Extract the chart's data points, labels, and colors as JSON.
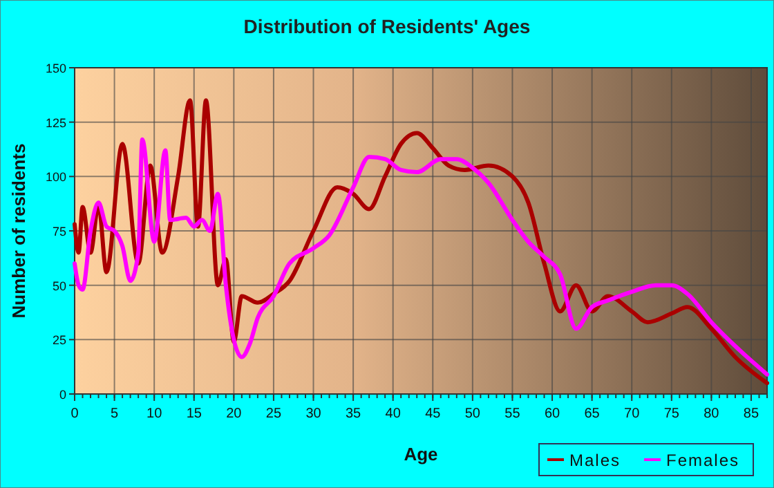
{
  "chart_data": {
    "type": "line",
    "title": "Distribution of Residents' Ages",
    "xlabel": "Age",
    "ylabel": "Number of residents",
    "xlim": [
      0,
      87
    ],
    "xticks": [
      0,
      5,
      10,
      15,
      20,
      25,
      30,
      35,
      40,
      45,
      50,
      55,
      60,
      65,
      70,
      75,
      80,
      85
    ],
    "ylim": [
      0,
      150
    ],
    "yticks": [
      0,
      25,
      50,
      75,
      100,
      125,
      150
    ],
    "grid": true,
    "legend": "bottom right",
    "line_style": "solid",
    "marker": "none",
    "series": [
      {
        "name": "Males",
        "color": "#aa0000",
        "x": [
          0,
          0.5,
          1,
          2,
          3,
          4,
          6,
          8,
          9.5,
          11,
          13,
          14.5,
          15.5,
          16.5,
          18,
          19,
          20,
          21,
          23,
          25,
          27,
          30,
          33,
          35,
          37,
          39,
          41,
          43,
          45,
          47,
          49,
          52,
          55,
          57,
          59,
          61,
          63,
          65,
          67,
          70,
          72,
          75,
          77,
          80,
          83,
          87
        ],
        "values": [
          78,
          65,
          86,
          65,
          87,
          56,
          115,
          60,
          105,
          65,
          100,
          135,
          77,
          135,
          50,
          62,
          24,
          45,
          42,
          46,
          52,
          75,
          95,
          92,
          85,
          100,
          115,
          120,
          113,
          105,
          103,
          105,
          100,
          88,
          60,
          38,
          50,
          38,
          45,
          38,
          33,
          37,
          40,
          30,
          17,
          5
        ]
      },
      {
        "name": "Females",
        "color": "#ff00ff",
        "x": [
          0,
          0.5,
          1,
          2,
          3,
          4,
          5,
          6,
          7,
          8,
          8.5,
          10,
          11.4,
          12,
          14,
          15,
          16,
          17,
          18,
          19,
          20,
          21,
          22,
          23,
          25,
          27,
          30,
          32,
          35,
          37,
          39,
          41,
          43,
          46,
          48,
          50,
          52,
          55,
          57,
          59,
          61,
          63,
          65,
          67,
          70,
          73,
          75,
          77,
          80,
          83,
          87
        ],
        "values": [
          60,
          50,
          48,
          75,
          88,
          77,
          75,
          68,
          52,
          65,
          117,
          70,
          112,
          80,
          81,
          77,
          80,
          75,
          92,
          50,
          25,
          17,
          23,
          35,
          45,
          60,
          67,
          73,
          95,
          109,
          108,
          103,
          102,
          108,
          108,
          104,
          97,
          80,
          70,
          63,
          55,
          30,
          40,
          43,
          47,
          50,
          50,
          46,
          33,
          22,
          9
        ]
      }
    ]
  }
}
